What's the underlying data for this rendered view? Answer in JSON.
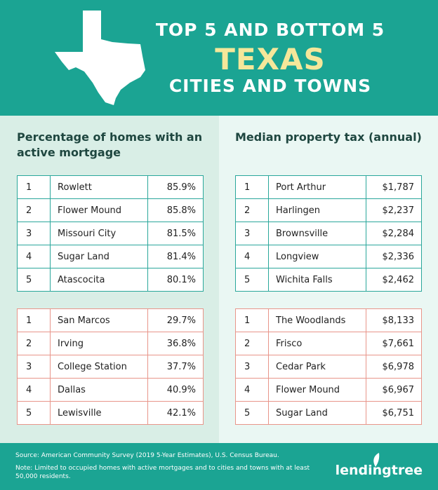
{
  "header": {
    "title_lines": [
      "TOP 5 AND BOTTOM 5",
      "TEXAS",
      "CITIES AND TOWNS"
    ]
  },
  "columns": [
    {
      "heading": "Percentage of homes with an active mortgage",
      "tables": [
        {
          "rows": [
            [
              "1",
              "Rowlett",
              "85.9%"
            ],
            [
              "2",
              "Flower Mound",
              "85.8%"
            ],
            [
              "3",
              "Missouri City",
              "81.5%"
            ],
            [
              "4",
              "Sugar Land",
              "81.4%"
            ],
            [
              "5",
              "Atascocita",
              "80.1%"
            ]
          ]
        },
        {
          "rows": [
            [
              "1",
              "San Marcos",
              "29.7%"
            ],
            [
              "2",
              "Irving",
              "36.8%"
            ],
            [
              "3",
              "College Station",
              "37.7%"
            ],
            [
              "4",
              "Dallas",
              "40.9%"
            ],
            [
              "5",
              "Lewisville",
              "42.1%"
            ]
          ]
        }
      ]
    },
    {
      "heading": "Median property tax (annual)",
      "tables": [
        {
          "rows": [
            [
              "1",
              "Port Arthur",
              "$1,787"
            ],
            [
              "2",
              "Harlingen",
              "$2,237"
            ],
            [
              "3",
              "Brownsville",
              "$2,284"
            ],
            [
              "4",
              "Longview",
              "$2,336"
            ],
            [
              "5",
              "Wichita Falls",
              "$2,462"
            ]
          ]
        },
        {
          "rows": [
            [
              "1",
              "The Woodlands",
              "$8,133"
            ],
            [
              "2",
              "Frisco",
              "$7,661"
            ],
            [
              "3",
              "Cedar Park",
              "$6,978"
            ],
            [
              "4",
              "Flower Mound",
              "$6,967"
            ],
            [
              "5",
              "Sugar Land",
              "$6,751"
            ]
          ]
        }
      ]
    }
  ],
  "footer": {
    "source": "Source: American Community Survey (2019 5-Year Estimates), U.S. Census Bureau.",
    "note": "Note: Limited to occupied homes with active mortgages and to cities and towns with at least 50,000 residents.",
    "logo": "lendingtree"
  }
}
